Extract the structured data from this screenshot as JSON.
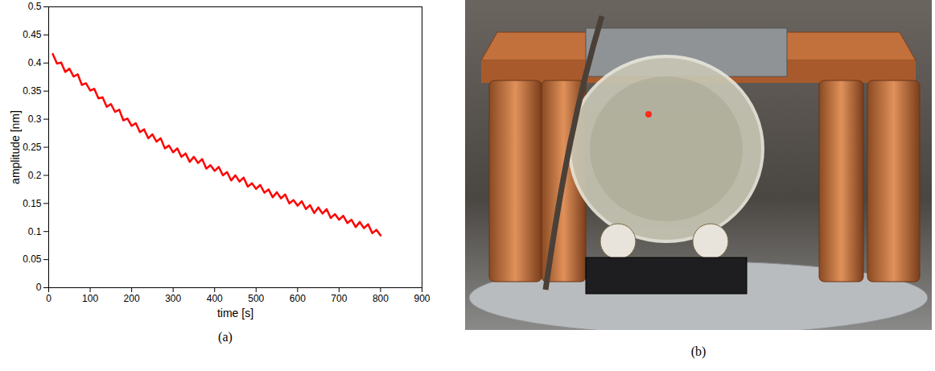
{
  "chart_data": {
    "type": "line",
    "caption": "(a)",
    "xlabel": "time [s]",
    "ylabel": "amplitude [nm]",
    "x": [
      10,
      20,
      30,
      40,
      50,
      60,
      70,
      80,
      90,
      100,
      110,
      120,
      130,
      140,
      150,
      160,
      170,
      180,
      190,
      200,
      210,
      220,
      230,
      240,
      250,
      260,
      270,
      280,
      290,
      300,
      310,
      320,
      330,
      340,
      350,
      360,
      370,
      380,
      390,
      400,
      410,
      420,
      430,
      440,
      450,
      460,
      470,
      480,
      490,
      500,
      510,
      520,
      530,
      540,
      550,
      560,
      570,
      580,
      590,
      600,
      610,
      620,
      630,
      640,
      650,
      660,
      670,
      680,
      690,
      700,
      710,
      720,
      730,
      740,
      750,
      760,
      770,
      780,
      790,
      800
    ],
    "values": [
      0.416,
      0.399,
      0.401,
      0.384,
      0.39,
      0.376,
      0.38,
      0.361,
      0.364,
      0.351,
      0.354,
      0.337,
      0.339,
      0.322,
      0.327,
      0.313,
      0.317,
      0.298,
      0.301,
      0.288,
      0.293,
      0.277,
      0.282,
      0.266,
      0.273,
      0.26,
      0.266,
      0.248,
      0.253,
      0.241,
      0.248,
      0.233,
      0.239,
      0.224,
      0.233,
      0.222,
      0.229,
      0.212,
      0.218,
      0.208,
      0.215,
      0.2,
      0.206,
      0.191,
      0.2,
      0.189,
      0.196,
      0.18,
      0.186,
      0.176,
      0.183,
      0.169,
      0.175,
      0.161,
      0.17,
      0.159,
      0.166,
      0.15,
      0.156,
      0.146,
      0.154,
      0.14,
      0.147,
      0.133,
      0.143,
      0.132,
      0.14,
      0.124,
      0.131,
      0.121,
      0.128,
      0.115,
      0.121,
      0.108,
      0.117,
      0.106,
      0.113,
      0.097,
      0.103,
      0.093
    ],
    "color": "#ff0000",
    "xlim": [
      0,
      900
    ],
    "xticks": [
      0,
      100,
      200,
      300,
      400,
      500,
      600,
      700,
      800,
      900
    ],
    "ylim": [
      0,
      0.5
    ],
    "yticks": [
      0,
      0.05,
      0.1,
      0.15,
      0.2,
      0.25,
      0.3,
      0.35,
      0.4,
      0.45,
      0.5
    ],
    "grid": false
  },
  "image": {
    "caption": "(b)"
  }
}
